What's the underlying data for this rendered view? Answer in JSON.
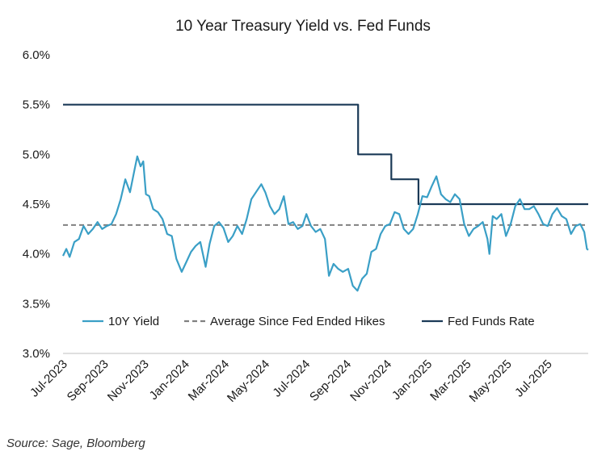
{
  "title": "10 Year Treasury Yield vs. Fed Funds",
  "source": "Source: Sage, Bloomberg",
  "chart_data": {
    "type": "line",
    "title": "10 Year Treasury Yield vs. Fed Funds",
    "xlabel": "",
    "ylabel": "",
    "ylim": [
      3.0,
      6.0
    ],
    "xlim": [
      "2023-07-01",
      "2025-08-31"
    ],
    "y_ticks": [
      "3.0%",
      "3.5%",
      "4.0%",
      "4.5%",
      "5.0%",
      "5.5%",
      "6.0%"
    ],
    "x_ticks": [
      {
        "label": "Jul-2023",
        "date": "2023-07-01"
      },
      {
        "label": "Sep-2023",
        "date": "2023-09-01"
      },
      {
        "label": "Nov-2023",
        "date": "2023-11-01"
      },
      {
        "label": "Jan-2024",
        "date": "2024-01-01"
      },
      {
        "label": "Mar-2024",
        "date": "2024-03-01"
      },
      {
        "label": "May-2024",
        "date": "2024-05-01"
      },
      {
        "label": "Jul-2024",
        "date": "2024-07-01"
      },
      {
        "label": "Sep-2024",
        "date": "2024-09-01"
      },
      {
        "label": "Nov-2024",
        "date": "2024-11-01"
      },
      {
        "label": "Jan-2025",
        "date": "2025-01-01"
      },
      {
        "label": "Mar-2025",
        "date": "2025-03-01"
      },
      {
        "label": "May-2025",
        "date": "2025-05-01"
      },
      {
        "label": "Jul-2025",
        "date": "2025-07-01"
      }
    ],
    "grid": false,
    "legend_position": "bottom",
    "series": [
      {
        "name": "10Y Yield",
        "style": "solid",
        "color": "#3a9fc6",
        "points": [
          [
            "2023-07-01",
            3.98
          ],
          [
            "2023-07-06",
            4.05
          ],
          [
            "2023-07-11",
            3.97
          ],
          [
            "2023-07-18",
            4.12
          ],
          [
            "2023-07-25",
            4.15
          ],
          [
            "2023-08-01",
            4.28
          ],
          [
            "2023-08-08",
            4.2
          ],
          [
            "2023-08-15",
            4.25
          ],
          [
            "2023-08-22",
            4.32
          ],
          [
            "2023-08-29",
            4.25
          ],
          [
            "2023-09-05",
            4.28
          ],
          [
            "2023-09-12",
            4.3
          ],
          [
            "2023-09-19",
            4.4
          ],
          [
            "2023-09-26",
            4.55
          ],
          [
            "2023-10-03",
            4.75
          ],
          [
            "2023-10-10",
            4.62
          ],
          [
            "2023-10-17",
            4.85
          ],
          [
            "2023-10-21",
            4.98
          ],
          [
            "2023-10-26",
            4.88
          ],
          [
            "2023-10-30",
            4.93
          ],
          [
            "2023-11-03",
            4.6
          ],
          [
            "2023-11-08",
            4.58
          ],
          [
            "2023-11-14",
            4.45
          ],
          [
            "2023-11-21",
            4.42
          ],
          [
            "2023-11-28",
            4.35
          ],
          [
            "2023-12-05",
            4.2
          ],
          [
            "2023-12-12",
            4.18
          ],
          [
            "2023-12-19",
            3.95
          ],
          [
            "2023-12-27",
            3.82
          ],
          [
            "2024-01-03",
            3.92
          ],
          [
            "2024-01-10",
            4.02
          ],
          [
            "2024-01-17",
            4.08
          ],
          [
            "2024-01-24",
            4.12
          ],
          [
            "2024-02-01",
            3.87
          ],
          [
            "2024-02-07",
            4.1
          ],
          [
            "2024-02-14",
            4.28
          ],
          [
            "2024-02-21",
            4.32
          ],
          [
            "2024-02-28",
            4.26
          ],
          [
            "2024-03-06",
            4.12
          ],
          [
            "2024-03-13",
            4.18
          ],
          [
            "2024-03-20",
            4.28
          ],
          [
            "2024-03-27",
            4.2
          ],
          [
            "2024-04-03",
            4.35
          ],
          [
            "2024-04-10",
            4.55
          ],
          [
            "2024-04-17",
            4.62
          ],
          [
            "2024-04-25",
            4.7
          ],
          [
            "2024-05-01",
            4.62
          ],
          [
            "2024-05-08",
            4.48
          ],
          [
            "2024-05-15",
            4.4
          ],
          [
            "2024-05-22",
            4.45
          ],
          [
            "2024-05-29",
            4.58
          ],
          [
            "2024-06-05",
            4.3
          ],
          [
            "2024-06-12",
            4.32
          ],
          [
            "2024-06-19",
            4.25
          ],
          [
            "2024-06-26",
            4.28
          ],
          [
            "2024-07-02",
            4.4
          ],
          [
            "2024-07-09",
            4.28
          ],
          [
            "2024-07-16",
            4.22
          ],
          [
            "2024-07-23",
            4.25
          ],
          [
            "2024-07-30",
            4.15
          ],
          [
            "2024-08-05",
            3.78
          ],
          [
            "2024-08-12",
            3.9
          ],
          [
            "2024-08-19",
            3.85
          ],
          [
            "2024-08-26",
            3.82
          ],
          [
            "2024-09-03",
            3.85
          ],
          [
            "2024-09-10",
            3.68
          ],
          [
            "2024-09-17",
            3.63
          ],
          [
            "2024-09-24",
            3.75
          ],
          [
            "2024-10-01",
            3.8
          ],
          [
            "2024-10-08",
            4.02
          ],
          [
            "2024-10-15",
            4.05
          ],
          [
            "2024-10-22",
            4.2
          ],
          [
            "2024-10-29",
            4.28
          ],
          [
            "2024-11-05",
            4.3
          ],
          [
            "2024-11-12",
            4.42
          ],
          [
            "2024-11-19",
            4.4
          ],
          [
            "2024-11-26",
            4.25
          ],
          [
            "2024-12-03",
            4.2
          ],
          [
            "2024-12-10",
            4.25
          ],
          [
            "2024-12-17",
            4.4
          ],
          [
            "2024-12-24",
            4.58
          ],
          [
            "2024-12-31",
            4.57
          ],
          [
            "2025-01-07",
            4.68
          ],
          [
            "2025-01-14",
            4.78
          ],
          [
            "2025-01-21",
            4.6
          ],
          [
            "2025-01-28",
            4.55
          ],
          [
            "2025-02-04",
            4.52
          ],
          [
            "2025-02-11",
            4.6
          ],
          [
            "2025-02-18",
            4.55
          ],
          [
            "2025-02-25",
            4.3
          ],
          [
            "2025-03-04",
            4.18
          ],
          [
            "2025-03-11",
            4.25
          ],
          [
            "2025-03-18",
            4.28
          ],
          [
            "2025-03-25",
            4.32
          ],
          [
            "2025-04-01",
            4.15
          ],
          [
            "2025-04-04",
            4.0
          ],
          [
            "2025-04-09",
            4.38
          ],
          [
            "2025-04-15",
            4.35
          ],
          [
            "2025-04-22",
            4.4
          ],
          [
            "2025-04-29",
            4.18
          ],
          [
            "2025-05-06",
            4.3
          ],
          [
            "2025-05-13",
            4.48
          ],
          [
            "2025-05-20",
            4.55
          ],
          [
            "2025-05-27",
            4.45
          ],
          [
            "2025-06-03",
            4.45
          ],
          [
            "2025-06-10",
            4.48
          ],
          [
            "2025-06-17",
            4.4
          ],
          [
            "2025-06-24",
            4.3
          ],
          [
            "2025-07-01",
            4.28
          ],
          [
            "2025-07-08",
            4.4
          ],
          [
            "2025-07-15",
            4.46
          ],
          [
            "2025-07-22",
            4.38
          ],
          [
            "2025-07-29",
            4.35
          ],
          [
            "2025-08-05",
            4.2
          ],
          [
            "2025-08-12",
            4.28
          ],
          [
            "2025-08-19",
            4.3
          ],
          [
            "2025-08-25",
            4.22
          ],
          [
            "2025-08-29",
            4.05
          ],
          [
            "2025-08-31",
            4.04
          ]
        ]
      },
      {
        "name": "Average Since Fed Ended Hikes",
        "style": "dashed",
        "color": "#808080",
        "points": [
          [
            "2023-07-01",
            4.29
          ],
          [
            "2025-08-31",
            4.29
          ]
        ]
      },
      {
        "name": "Fed Funds Rate",
        "style": "step",
        "color": "#1b3a57",
        "points": [
          [
            "2023-07-01",
            5.5
          ],
          [
            "2024-09-18",
            5.5
          ],
          [
            "2024-09-18",
            5.0
          ],
          [
            "2024-11-07",
            5.0
          ],
          [
            "2024-11-07",
            4.75
          ],
          [
            "2024-12-18",
            4.75
          ],
          [
            "2024-12-18",
            4.5
          ],
          [
            "2025-08-31",
            4.5
          ]
        ]
      }
    ]
  }
}
